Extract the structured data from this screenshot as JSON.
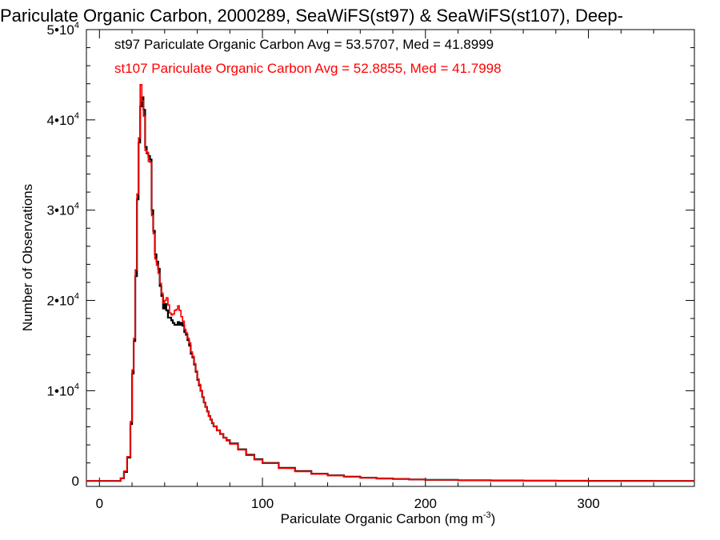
{
  "chart_data": {
    "type": "line",
    "title": "Pariculate Organic Carbon, 2000289, SeaWiFS(st97) & SeaWiFS(st107), Deep-",
    "xlabel": "Pariculate Organic Carbon (mg m",
    "xlabel_sup": "-3",
    "xlabel_suffix": ")",
    "ylabel": "Number of Observations",
    "xlim": [
      -8,
      365
    ],
    "ylim": [
      -600,
      50000
    ],
    "x_ticks": [
      {
        "value": 0,
        "label": "0"
      },
      {
        "value": 100,
        "label": "100"
      },
      {
        "value": 200,
        "label": "200"
      },
      {
        "value": 300,
        "label": "300"
      }
    ],
    "y_ticks": [
      {
        "value": 0,
        "mant": "0",
        "exp": ""
      },
      {
        "value": 10000,
        "mant": "1•10",
        "exp": "4"
      },
      {
        "value": 20000,
        "mant": "2•10",
        "exp": "4"
      },
      {
        "value": 30000,
        "mant": "3•10",
        "exp": "4"
      },
      {
        "value": 40000,
        "mant": "4•10",
        "exp": "4"
      },
      {
        "value": 50000,
        "mant": "5•10",
        "exp": "4"
      }
    ],
    "step_style": "histogram",
    "series": [
      {
        "name": "st97",
        "label": "st97 Pariculate Organic Carbon Avg = 53.5707, Med = 41.8999",
        "color": "#000000",
        "x": [
          -8,
          10,
          13,
          15,
          17,
          19,
          20,
          21,
          22,
          23,
          24,
          25,
          26,
          27,
          28,
          29,
          30,
          31,
          32,
          33,
          34,
          35,
          36,
          37,
          38,
          39,
          40,
          41,
          42,
          43,
          44,
          45,
          46,
          47,
          48,
          49,
          50,
          51,
          52,
          53,
          54,
          55,
          56,
          57,
          58,
          59,
          60,
          61,
          62,
          63,
          64,
          65,
          66,
          67,
          68,
          69,
          70,
          72,
          74,
          76,
          78,
          80,
          85,
          90,
          95,
          100,
          110,
          120,
          130,
          140,
          150,
          160,
          170,
          180,
          190,
          200,
          220,
          240,
          260,
          280,
          300,
          320,
          340,
          365
        ],
        "y": [
          0,
          0,
          300,
          1000,
          2600,
          6300,
          11900,
          15500,
          22700,
          31200,
          37500,
          41500,
          42500,
          41100,
          37000,
          36300,
          36000,
          35600,
          30000,
          27700,
          25100,
          24300,
          23500,
          21600,
          20500,
          19100,
          19600,
          18900,
          18100,
          18100,
          17800,
          17500,
          17300,
          17300,
          17600,
          17300,
          17500,
          17200,
          16500,
          16200,
          15600,
          15000,
          14100,
          13700,
          12900,
          12100,
          11200,
          10600,
          10000,
          9300,
          8700,
          8200,
          7700,
          7200,
          6800,
          6400,
          6050,
          5600,
          5200,
          4800,
          4500,
          4150,
          3500,
          2900,
          2400,
          2000,
          1450,
          1100,
          800,
          620,
          470,
          360,
          280,
          220,
          170,
          130,
          85,
          55,
          35,
          22,
          14,
          9,
          5,
          3
        ]
      },
      {
        "name": "st107",
        "label": "st107 Pariculate Organic Carbon Avg = 52.8855, Med = 41.7998",
        "color": "#ff0000",
        "x": [
          -8,
          10,
          13,
          15,
          17,
          19,
          20,
          21,
          22,
          23,
          24,
          25,
          26,
          27,
          28,
          29,
          30,
          31,
          32,
          33,
          34,
          35,
          36,
          37,
          38,
          39,
          40,
          41,
          42,
          43,
          44,
          45,
          46,
          47,
          48,
          49,
          50,
          51,
          52,
          53,
          54,
          55,
          56,
          57,
          58,
          59,
          60,
          61,
          62,
          63,
          64,
          65,
          66,
          67,
          68,
          69,
          70,
          72,
          74,
          76,
          78,
          80,
          85,
          90,
          95,
          100,
          110,
          120,
          130,
          140,
          150,
          160,
          170,
          180,
          190,
          200,
          220,
          240,
          260,
          280,
          300,
          320,
          340,
          365
        ],
        "y": [
          0,
          0,
          300,
          1100,
          2700,
          6600,
          12300,
          15800,
          23400,
          31800,
          38000,
          43900,
          42100,
          40400,
          36600,
          36400,
          35400,
          35300,
          29400,
          27400,
          24600,
          23900,
          23000,
          21900,
          20800,
          19700,
          20000,
          20300,
          19500,
          18600,
          18400,
          18500,
          18900,
          19000,
          19400,
          18900,
          18200,
          17700,
          16800,
          16400,
          15800,
          15300,
          14300,
          13800,
          13000,
          12200,
          11300,
          10700,
          10000,
          9300,
          8700,
          8200,
          7700,
          7200,
          6800,
          6400,
          6050,
          5600,
          5200,
          4800,
          4450,
          4100,
          3450,
          2850,
          2350,
          1950,
          1400,
          1050,
          770,
          600,
          455,
          350,
          270,
          215,
          165,
          125,
          82,
          52,
          33,
          21,
          13,
          8,
          5,
          3
        ]
      }
    ]
  }
}
